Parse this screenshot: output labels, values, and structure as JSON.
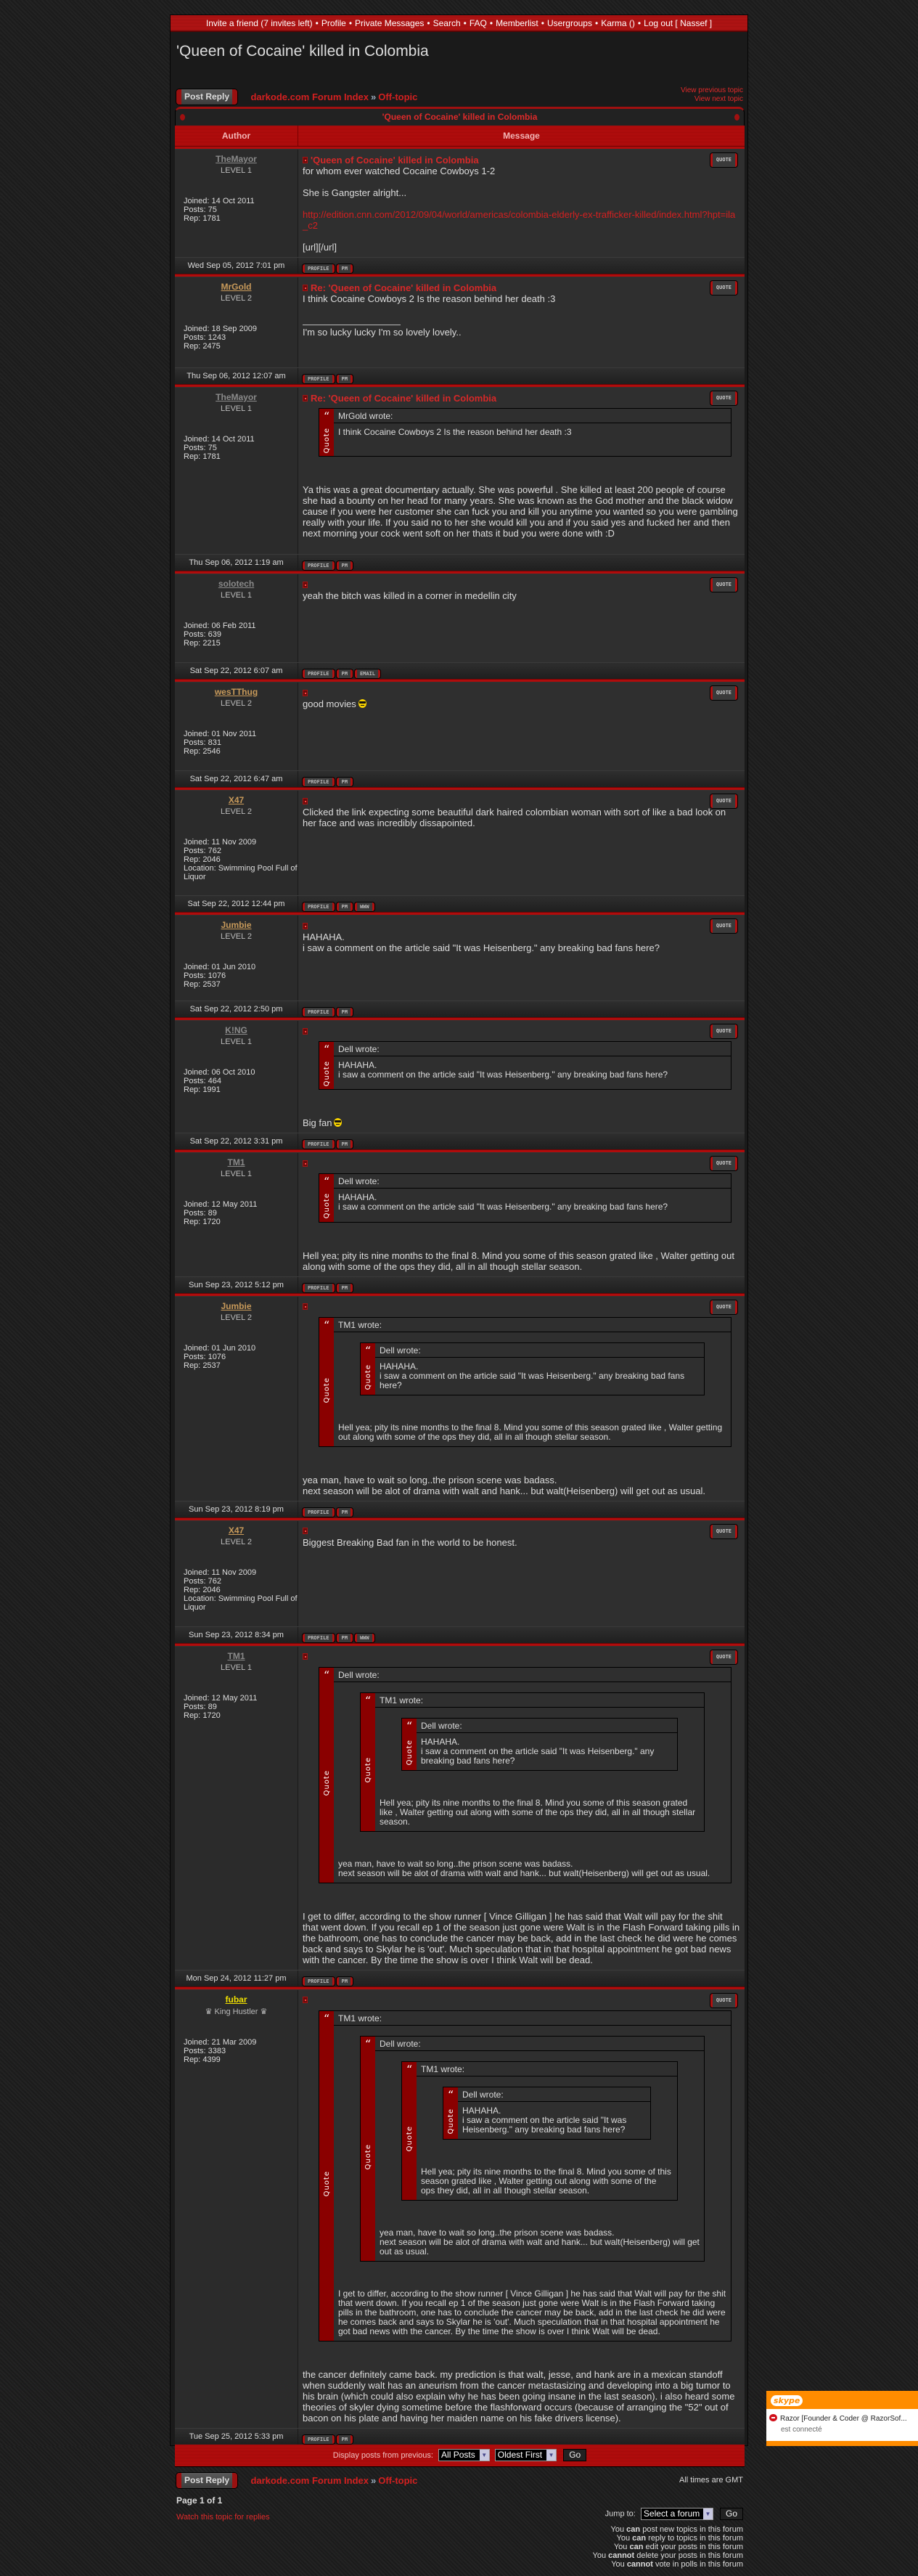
{
  "nav": {
    "items": [
      "Invite a friend (7 invites left)",
      "Profile",
      "Private Messages",
      "Search",
      "FAQ",
      "Memberlist",
      "Usergroups",
      "Karma ()",
      "Log out [ Nassef ]"
    ],
    "separator": "•"
  },
  "page_title": "'Queen of Cocaine' killed in Colombia",
  "post_reply_label": "Post Reply",
  "breadcrumb": {
    "index": "darkode.com Forum Index",
    "sep": "»",
    "forum": "Off-topic"
  },
  "topic_nav": {
    "previous": "View previous topic",
    "next": "View next topic"
  },
  "topic_bar_title": "'Queen of Cocaine' killed in Colombia",
  "columns": {
    "author": "Author",
    "message": "Message"
  },
  "labels": {
    "joined": "Joined:",
    "posts": "Posts:",
    "rep": "Rep:",
    "location": "Location:",
    "quote_button": "QUOTE",
    "quote_label": "Quote",
    "wrote": "wrote:"
  },
  "colors": {
    "accent": "#b00c0c",
    "link": "#d42020",
    "quote_strip": "#8a0000"
  },
  "posts": [
    {
      "author": {
        "name": "TheMayor",
        "name_color": "#8a8a8a",
        "rank": "LEVEL 1",
        "joined": "14 Oct 2011",
        "posts": "75",
        "rep": "1781"
      },
      "subject": "'Queen of Cocaine' killed in Colombia",
      "body": [
        {
          "t": "for whom ever watched Cocaine Cowboys 1-2\n\nShe is Gangster alright...\n\n"
        },
        {
          "link": "http://edition.cnn.com/2012/09/04/world/americas/colombia-elderly-ex-trafficker-killed/index.html?hpt=ila_c2"
        },
        {
          "t": "\n\n[url][/url]"
        }
      ],
      "date": "Wed Sep 05, 2012 7:01 pm",
      "buttons": [
        "PROFILE",
        "PM"
      ]
    },
    {
      "author": {
        "name": "MrGold",
        "name_color": "#c89a5a",
        "rank": "LEVEL 2",
        "joined": "18 Sep 2009",
        "posts": "1243",
        "rep": "2475"
      },
      "subject": "Re: 'Queen of Cocaine' killed in Colombia",
      "body": [
        {
          "t": "I think Cocaine Cowboys 2 Is the reason behind her death :3"
        }
      ],
      "signature": "I'm so lucky lucky I'm so lovely lovely..",
      "date": "Thu Sep 06, 2012 12:07 am",
      "buttons": [
        "PROFILE",
        "PM"
      ]
    },
    {
      "author": {
        "name": "TheMayor",
        "name_color": "#8a8a8a",
        "rank": "LEVEL 1",
        "joined": "14 Oct 2011",
        "posts": "75",
        "rep": "1781"
      },
      "subject": "Re: 'Queen of Cocaine' killed in Colombia",
      "quote": {
        "author": "MrGold",
        "text": "I think Cocaine Cowboys 2 Is the reason behind her death :3"
      },
      "body": [
        {
          "t": "Ya this was a great documentary actually. She was powerful . She killed at least 200 people of course\nshe had a bounty on her head for many years. She was known as the God mother and the black widow cause if you were her customer she can fuck you and kill you anytime you wanted so you were gambling really with your life. If you said no to her she would kill you and if you said yes and fucked her and then next morning your cock went soft on her thats it bud you were done with :D"
        }
      ],
      "date": "Thu Sep 06, 2012 1:19 am",
      "buttons": [
        "PROFILE",
        "PM"
      ]
    },
    {
      "author": {
        "name": "solotech",
        "name_color": "#8a8a8a",
        "rank": "LEVEL 1",
        "joined": "06 Feb 2011",
        "posts": "639",
        "rep": "2215"
      },
      "body": [
        {
          "t": "yeah the bitch was killed in a corner in medellin city"
        }
      ],
      "date": "Sat Sep 22, 2012 6:07 am",
      "buttons": [
        "PROFILE",
        "PM",
        "EMAIL"
      ]
    },
    {
      "author": {
        "name": "wesTThug",
        "name_color": "#c89a5a",
        "rank": "LEVEL 2",
        "joined": "01 Nov 2011",
        "posts": "831",
        "rep": "2546"
      },
      "body": [
        {
          "t": "good movies"
        },
        {
          "smiley": "cool"
        }
      ],
      "date": "Sat Sep 22, 2012 6:47 am",
      "buttons": [
        "PROFILE",
        "PM"
      ]
    },
    {
      "author": {
        "name": "X47",
        "name_color": "#c89a5a",
        "rank": "LEVEL 2",
        "joined": "11 Nov 2009",
        "posts": "762",
        "rep": "2046",
        "location": "Swimming Pool Full of Liquor"
      },
      "body": [
        {
          "t": "Clicked the link expecting some beautiful dark haired colombian woman with sort of like a bad look on her face and was incredibly dissapointed."
        }
      ],
      "date": "Sat Sep 22, 2012 12:44 pm",
      "buttons": [
        "PROFILE",
        "PM",
        "WWW"
      ]
    },
    {
      "author": {
        "name": "Jumbie",
        "name_color": "#c89a5a",
        "rank": "LEVEL 2",
        "joined": "01 Jun 2010",
        "posts": "1076",
        "rep": "2537"
      },
      "body": [
        {
          "t": "HAHAHA.\ni saw a comment on the article said \"It was Heisenberg.\" any breaking bad fans here?"
        }
      ],
      "date": "Sat Sep 22, 2012 2:50 pm",
      "buttons": [
        "PROFILE",
        "PM"
      ]
    },
    {
      "author": {
        "name": "K!NG",
        "name_color": "#8a8a8a",
        "rank": "LEVEL 1",
        "joined": "06 Oct 2010",
        "posts": "464",
        "rep": "1991"
      },
      "quote": {
        "author": "Dell",
        "text": "HAHAHA.\ni saw a comment on the article said \"It was Heisenberg.\" any breaking bad fans here?"
      },
      "body": [
        {
          "t": "Big fan"
        },
        {
          "smiley": "cool"
        }
      ],
      "date": "Sat Sep 22, 2012 3:31 pm",
      "buttons": [
        "PROFILE",
        "PM"
      ]
    },
    {
      "author": {
        "name": "TM1",
        "name_color": "#8a8a8a",
        "rank": "LEVEL 1",
        "joined": "12 May 2011",
        "posts": "89",
        "rep": "1720"
      },
      "quote": {
        "author": "Dell",
        "text": "HAHAHA.\ni saw a comment on the article said \"It was Heisenberg.\" any breaking bad fans here?"
      },
      "body": [
        {
          "t": "Hell yea; pity its nine months to the final 8. Mind you some of this season grated like , Walter getting out along with some of the ops they did, all in all though stellar season."
        }
      ],
      "date": "Sun Sep 23, 2012 5:12 pm",
      "buttons": [
        "PROFILE",
        "PM"
      ]
    },
    {
      "author": {
        "name": "Jumbie",
        "name_color": "#c89a5a",
        "rank": "LEVEL 2",
        "joined": "01 Jun 2010",
        "posts": "1076",
        "rep": "2537"
      },
      "quote": {
        "author": "TM1",
        "quote": {
          "author": "Dell",
          "text": "HAHAHA.\ni saw a comment on the article said \"It was Heisenberg.\" any breaking bad fans here?"
        },
        "text": "Hell yea; pity its nine months to the final 8. Mind you some of this season grated like , Walter getting out along with some of the ops they did, all in all though stellar season."
      },
      "body": [
        {
          "t": "yea man, have to wait so long..the prison scene was badass.\nnext season will be alot of drama with walt and hank... but walt(Heisenberg) will get out as usual."
        }
      ],
      "date": "Sun Sep 23, 2012 8:19 pm",
      "buttons": [
        "PROFILE",
        "PM"
      ]
    },
    {
      "author": {
        "name": "X47",
        "name_color": "#c89a5a",
        "rank": "LEVEL 2",
        "joined": "11 Nov 2009",
        "posts": "762",
        "rep": "2046",
        "location": "Swimming Pool Full of Liquor"
      },
      "body": [
        {
          "t": "Biggest Breaking Bad fan in the world to be honest."
        }
      ],
      "date": "Sun Sep 23, 2012 8:34 pm",
      "buttons": [
        "PROFILE",
        "PM",
        "WWW"
      ]
    },
    {
      "author": {
        "name": "TM1",
        "name_color": "#8a8a8a",
        "rank": "LEVEL 1",
        "joined": "12 May 2011",
        "posts": "89",
        "rep": "1720"
      },
      "quote": {
        "author": "Dell",
        "quote": {
          "author": "TM1",
          "quote": {
            "author": "Dell",
            "text": "HAHAHA.\ni saw a comment on the article said \"It was Heisenberg.\" any breaking bad fans here?"
          },
          "text": "Hell yea; pity its nine months to the final 8. Mind you some of this season grated like , Walter getting out along with some of the ops they did, all in all though stellar season."
        },
        "text": "yea man, have to wait so long..the prison scene was badass.\nnext season will be alot of drama with walt and hank... but walt(Heisenberg) will get out as usual."
      },
      "body": [
        {
          "t": "I get to differ, according to the show runner [ Vince Gilligan ] he has said that Walt will pay for the shit that went down. If you recall ep 1 of the season just gone were Walt is in the Flash Forward taking pills in the bathroom, one has to conclude the cancer may be back, add in the last check he did were he comes back and says to Skylar he is 'out'. Much speculation that in that hospital appointment he got bad news with the cancer. By the time the show is over I think Walt will be dead."
        }
      ],
      "date": "Mon Sep 24, 2012 11:27 pm",
      "buttons": [
        "PROFILE",
        "PM"
      ]
    },
    {
      "author": {
        "name": "fubar",
        "name_color": "#f0e000",
        "rank": "♛ King Hustler ♛",
        "joined": "21 Mar 2009",
        "posts": "3383",
        "rep": "4399"
      },
      "quote": {
        "author": "TM1",
        "quote": {
          "author": "Dell",
          "quote": {
            "author": "TM1",
            "quote": {
              "author": "Dell",
              "text": "HAHAHA.\ni saw a comment on the article said \"It was Heisenberg.\" any breaking bad fans here?"
            },
            "text": "Hell yea; pity its nine months to the final 8. Mind you some of this season grated like , Walter getting out along with some of the ops they did, all in all though stellar season."
          },
          "text": "yea man, have to wait so long..the prison scene was badass.\nnext season will be alot of drama with walt and hank... but walt(Heisenberg) will get out as usual."
        },
        "text": "I get to differ, according to the show runner [ Vince Gilligan ] he has said that Walt will pay for the shit that went down. If you recall ep 1 of the season just gone were Walt is in the Flash Forward taking pills in the bathroom, one has to conclude the cancer may be back, add in the last check he did were he comes back and says to Skylar he is 'out'. Much speculation that in that hospital appointment he got bad news with the cancer. By the time the show is over I think Walt will be dead."
      },
      "body": [
        {
          "t": "the cancer definitely came back. my prediction is that walt, jesse, and hank are in a mexican standoff when suddenly walt has an aneurism from the cancer metastasizing and developing into a big tumor to his brain (which could also explain why he has been going insane in the last season). i also heard some theories of skyler dying sometime before the flashforward occurs (because of arranging the \"52\" out of bacon on his plate and having her maiden name on his fake drivers license)."
        }
      ],
      "date": "Tue Sep 25, 2012 5:33 pm",
      "buttons": [
        "PROFILE",
        "PM"
      ]
    }
  ],
  "display_bar": {
    "label": "Display posts from previous:",
    "range": "All Posts",
    "order": "Oldest First",
    "go": "Go"
  },
  "footer": {
    "timezone": "All times are GMT",
    "page": "Page 1 of 1",
    "watch": "Watch this topic for replies",
    "jump_label": "Jump to:",
    "jump_value": "Select a forum",
    "jump_go": "Go",
    "permissions": [
      {
        "pre": "You",
        "bold": "can",
        "post": "post new topics in this forum"
      },
      {
        "pre": "You",
        "bold": "can",
        "post": "reply to topics in this forum"
      },
      {
        "pre": "You",
        "bold": "can",
        "post": "edit your posts in this forum"
      },
      {
        "pre": "You",
        "bold": "cannot",
        "post": "delete your posts in this forum"
      },
      {
        "pre": "You",
        "bold": "cannot",
        "post": "vote in polls in this forum"
      }
    ]
  },
  "skype_popup": {
    "logo": "skype",
    "contact": "Razor [Founder & Coder @ RazorSof...",
    "status": "est connecté"
  }
}
